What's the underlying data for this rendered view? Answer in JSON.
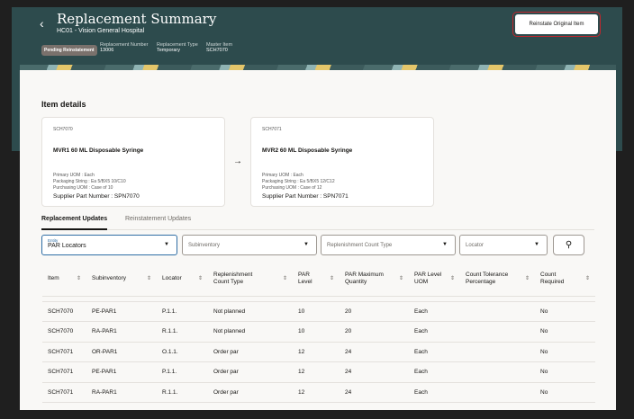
{
  "header": {
    "title": "Replacement Summary",
    "subtitle": "HC01 - Vision General Hospital",
    "status": "Pending Reinstatement",
    "meta": [
      {
        "label": "Replacement Number",
        "value": "13006"
      },
      {
        "label": "Replacement Type",
        "value": "Temporary"
      },
      {
        "label": "Master Item",
        "value": "SCH7070"
      }
    ],
    "action": "Reinstate Original Item"
  },
  "section_title": "Item details",
  "cards": [
    {
      "code": "SCH7070",
      "name": "MVR1 60 ML Disposable Syringe",
      "uom": "Primary UOM : Each",
      "pack": "Packaging String : Ea 5/BX5 10/C10",
      "purchase": "Purchasing UOM : Case of 10",
      "spn": "Supplier Part Number : SPN7070"
    },
    {
      "code": "SCH7071",
      "name": "MVR2 60 ML Disposable Syringe",
      "uom": "Primary UOM : Each",
      "pack": "Packaging String : Ea 5/BX5 12/C12",
      "purchase": "Purchasing UOM : Case of 12",
      "spn": "Supplier Part Number : SPN7071"
    }
  ],
  "arrow": "→",
  "tabs": [
    "Replacement Updates",
    "Reinstatement Updates"
  ],
  "filters": {
    "entity_label": "Entity",
    "entity_value": "PAR Locators",
    "subinventory": "Subinventory",
    "count_type": "Replenishment Count Type",
    "locator": "Locator"
  },
  "table": {
    "headers": [
      "Item",
      "Subinventory",
      "Locator",
      "Replenishment Count Type",
      "PAR Level",
      "PAR Maximum Quantity",
      "PAR Level UOM",
      "Count Tolerance Percentage",
      "Count Required"
    ],
    "rows": [
      [
        "SCH7070",
        "PE-PAR1",
        "P.1.1.",
        "Not planned",
        "10",
        "20",
        "Each",
        "",
        "No"
      ],
      [
        "SCH7070",
        "RA-PAR1",
        "R.1.1.",
        "Not planned",
        "10",
        "20",
        "Each",
        "",
        "No"
      ],
      [
        "SCH7071",
        "OR-PAR1",
        "O.1.1.",
        "Order par",
        "12",
        "24",
        "Each",
        "",
        "No"
      ],
      [
        "SCH7071",
        "PE-PAR1",
        "P.1.1.",
        "Order par",
        "12",
        "24",
        "Each",
        "",
        "No"
      ],
      [
        "SCH7071",
        "RA-PAR1",
        "R.1.1.",
        "Order par",
        "12",
        "24",
        "Each",
        "",
        "No"
      ]
    ]
  }
}
